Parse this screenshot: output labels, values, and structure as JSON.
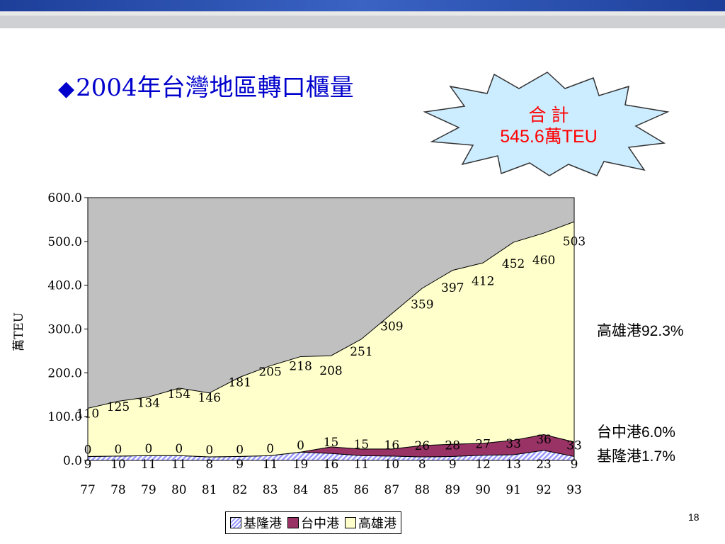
{
  "slide": {
    "title": "2004年台灣地區轉口櫃量",
    "title_bullet": "◆",
    "burst_line1": "合 計",
    "burst_line2": "545.6萬TEU",
    "page_number": "18",
    "share_labels": [
      {
        "key": "kaohsiung",
        "text": "高雄港92.3%"
      },
      {
        "key": "taichung",
        "text": "台中港6.0%"
      },
      {
        "key": "keelung",
        "text": "基隆港1.7%"
      }
    ]
  },
  "colors": {
    "kaohsiung": "#ffffcc",
    "taichung": "#993366",
    "keelung": "#9999ff",
    "plot_bg": "#c0c0c0",
    "burst_fill": "#ccecff",
    "title": "#0000cc"
  },
  "chart_data": {
    "type": "area",
    "stacked": true,
    "title": "",
    "xlabel": "",
    "ylabel": "萬TEU",
    "ylim": [
      0,
      600
    ],
    "yticks": [
      "0.0",
      "100.0",
      "200.0",
      "300.0",
      "400.0",
      "500.0",
      "600.0"
    ],
    "categories": [
      "77",
      "78",
      "79",
      "80",
      "81",
      "82",
      "83",
      "84",
      "85",
      "86",
      "87",
      "88",
      "89",
      "90",
      "91",
      "92",
      "93"
    ],
    "legend_position": "bottom",
    "series": [
      {
        "name": "基隆港",
        "key": "keelung",
        "values": [
          9,
          10,
          11,
          11,
          8,
          9,
          11,
          19,
          16,
          11,
          10,
          8,
          9,
          12,
          13,
          23,
          9
        ],
        "labels": [
          "9",
          "10",
          "11",
          "11",
          "8",
          "9",
          "11",
          "19",
          "16",
          "11",
          "10",
          "8",
          "9",
          "12",
          "13",
          "23",
          "9"
        ]
      },
      {
        "name": "台中港",
        "key": "taichung",
        "values": [
          0,
          0,
          0,
          0,
          0,
          0,
          0,
          0,
          15,
          15,
          16,
          26,
          28,
          27,
          33,
          36,
          33
        ],
        "labels": [
          "0",
          "0",
          "0",
          "0",
          "0",
          "0",
          "0",
          "0",
          "15",
          "15",
          "16",
          "26",
          "28",
          "27",
          "33",
          "36",
          "33"
        ]
      },
      {
        "name": "高雄港",
        "key": "kaohsiung",
        "values": [
          110,
          125,
          134,
          154,
          146,
          181,
          205,
          218,
          208,
          251,
          309,
          359,
          397,
          412,
          452,
          460,
          503
        ],
        "labels": [
          "110",
          "125",
          "134",
          "154",
          "146",
          "181",
          "205",
          "218",
          "208",
          "251",
          "309",
          "359",
          "397",
          "412",
          "452",
          "460",
          "503"
        ]
      }
    ]
  }
}
